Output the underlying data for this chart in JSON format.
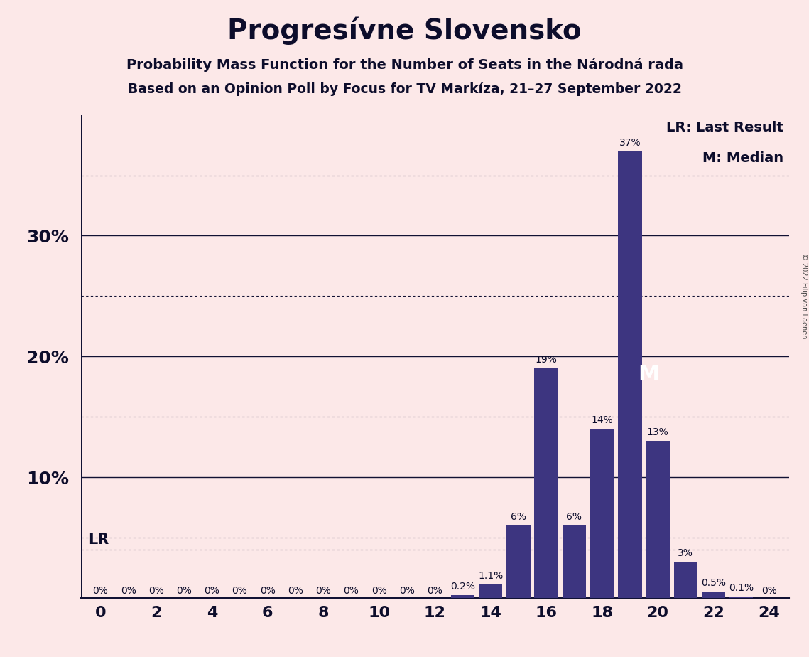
{
  "title": "Progresívne Slovensko",
  "subtitle1": "Probability Mass Function for the Number of Seats in the Národná rada",
  "subtitle2": "Based on an Opinion Poll by Focus for TV Markíza, 21–27 September 2022",
  "copyright": "© 2022 Filip van Laenen",
  "background_color": "#fce8e8",
  "bar_color": "#3d3580",
  "title_color": "#0d0d2b",
  "seats": [
    0,
    1,
    2,
    3,
    4,
    5,
    6,
    7,
    8,
    9,
    10,
    11,
    12,
    13,
    14,
    15,
    16,
    17,
    18,
    19,
    20,
    21,
    22,
    23,
    24
  ],
  "values": [
    0.0,
    0.0,
    0.0,
    0.0,
    0.0,
    0.0,
    0.0,
    0.0,
    0.0,
    0.0,
    0.0,
    0.0,
    0.0,
    0.2,
    1.1,
    6.0,
    19.0,
    6.0,
    14.0,
    37.0,
    13.0,
    3.0,
    0.5,
    0.1,
    0.0
  ],
  "labels": [
    "0%",
    "0%",
    "0%",
    "0%",
    "0%",
    "0%",
    "0%",
    "0%",
    "0%",
    "0%",
    "0%",
    "0%",
    "0%",
    "0.2%",
    "1.1%",
    "6%",
    "19%",
    "6%",
    "14%",
    "37%",
    "13%",
    "3%",
    "0.5%",
    "0.1%",
    "0%"
  ],
  "ylim": [
    0,
    40
  ],
  "xticks": [
    0,
    2,
    4,
    6,
    8,
    10,
    12,
    14,
    16,
    18,
    20,
    22,
    24
  ],
  "lr_line_y": 4.0,
  "median_seat": 19,
  "legend_text1": "LR: Last Result",
  "legend_text2": "M: Median",
  "solid_gridlines": [
    10,
    20,
    30
  ],
  "dotted_gridlines": [
    5,
    15,
    25,
    35
  ],
  "title_fontsize": 28,
  "subtitle1_fontsize": 14,
  "subtitle2_fontsize": 13.5,
  "ytick_fontsize": 18,
  "xtick_fontsize": 16,
  "bar_label_fontsize": 10,
  "legend_fontsize": 14,
  "lr_label_fontsize": 15,
  "median_label_fontsize": 22
}
